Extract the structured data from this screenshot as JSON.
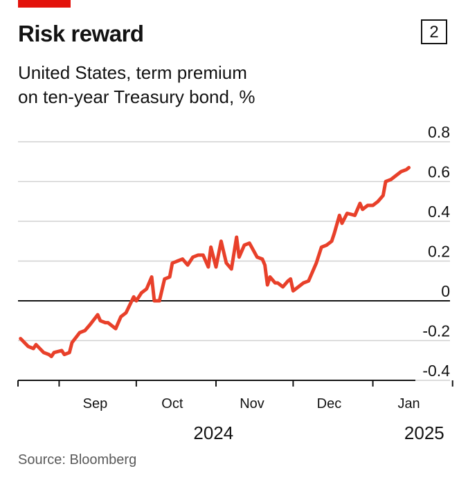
{
  "header": {
    "title": "Risk reward",
    "badge": "2",
    "subtitle_line1": "United States, term premium",
    "subtitle_line2": "on ten-year Treasury bond, %"
  },
  "source": "Source: Bloomberg",
  "colors": {
    "accent": "#e3120b",
    "line": "#e8402a",
    "grid": "#d0d0d0",
    "axis": "#121212"
  },
  "chart_data": {
    "type": "line",
    "title": "Risk reward",
    "subtitle": "United States, term premium on ten-year Treasury bond, %",
    "ylim": [
      -0.4,
      0.8
    ],
    "yticks": [
      -0.4,
      -0.2,
      0,
      0.2,
      0.4,
      0.6,
      0.8
    ],
    "ytick_labels": [
      "-0.4",
      "-0.2",
      "0",
      "0.2",
      "0.4",
      "0.6",
      "0.8"
    ],
    "xlim": [
      "2024-08-16",
      "2025-01-31"
    ],
    "month_labels": [
      {
        "label": "Sep",
        "date": "2024-09-15"
      },
      {
        "label": "Oct",
        "date": "2024-10-15"
      },
      {
        "label": "Nov",
        "date": "2024-11-15"
      },
      {
        "label": "Dec",
        "date": "2024-12-15"
      },
      {
        "label": "Jan",
        "date": "2025-01-15"
      }
    ],
    "month_boundaries": [
      "2024-09-01",
      "2024-10-01",
      "2024-11-01",
      "2024-12-01",
      "2025-01-01",
      "2025-02-01"
    ],
    "year_labels": [
      {
        "label": "2024",
        "date": "2024-10-31"
      },
      {
        "label": "2025",
        "date": "2025-01-21"
      }
    ],
    "series": [
      {
        "color": "#e8402a",
        "points": [
          [
            "2024-08-17",
            -0.19
          ],
          [
            "2024-08-20",
            -0.23
          ],
          [
            "2024-08-22",
            -0.24
          ],
          [
            "2024-08-23",
            -0.22
          ],
          [
            "2024-08-26",
            -0.26
          ],
          [
            "2024-08-28",
            -0.27
          ],
          [
            "2024-08-29",
            -0.28
          ],
          [
            "2024-08-30",
            -0.26
          ],
          [
            "2024-09-02",
            -0.25
          ],
          [
            "2024-09-03",
            -0.27
          ],
          [
            "2024-09-05",
            -0.26
          ],
          [
            "2024-09-06",
            -0.21
          ],
          [
            "2024-09-09",
            -0.16
          ],
          [
            "2024-09-11",
            -0.15
          ],
          [
            "2024-09-13",
            -0.12
          ],
          [
            "2024-09-16",
            -0.07
          ],
          [
            "2024-09-17",
            -0.1
          ],
          [
            "2024-09-19",
            -0.11
          ],
          [
            "2024-09-20",
            -0.11
          ],
          [
            "2024-09-23",
            -0.14
          ],
          [
            "2024-09-25",
            -0.08
          ],
          [
            "2024-09-27",
            -0.06
          ],
          [
            "2024-09-30",
            0.02
          ],
          [
            "2024-10-01",
            0.0
          ],
          [
            "2024-10-03",
            0.04
          ],
          [
            "2024-10-05",
            0.06
          ],
          [
            "2024-10-07",
            0.12
          ],
          [
            "2024-10-08",
            0.0
          ],
          [
            "2024-10-10",
            0.0
          ],
          [
            "2024-10-12",
            0.11
          ],
          [
            "2024-10-14",
            0.12
          ],
          [
            "2024-10-15",
            0.19
          ],
          [
            "2024-10-17",
            0.2
          ],
          [
            "2024-10-19",
            0.21
          ],
          [
            "2024-10-21",
            0.18
          ],
          [
            "2024-10-23",
            0.22
          ],
          [
            "2024-10-25",
            0.23
          ],
          [
            "2024-10-27",
            0.23
          ],
          [
            "2024-10-29",
            0.17
          ],
          [
            "2024-10-30",
            0.27
          ],
          [
            "2024-11-01",
            0.17
          ],
          [
            "2024-11-03",
            0.3
          ],
          [
            "2024-11-05",
            0.19
          ],
          [
            "2024-11-07",
            0.16
          ],
          [
            "2024-11-09",
            0.32
          ],
          [
            "2024-11-10",
            0.22
          ],
          [
            "2024-11-12",
            0.28
          ],
          [
            "2024-11-14",
            0.29
          ],
          [
            "2024-11-17",
            0.22
          ],
          [
            "2024-11-19",
            0.21
          ],
          [
            "2024-11-20",
            0.18
          ],
          [
            "2024-11-21",
            0.08
          ],
          [
            "2024-11-22",
            0.12
          ],
          [
            "2024-11-24",
            0.09
          ],
          [
            "2024-11-25",
            0.09
          ],
          [
            "2024-11-27",
            0.07
          ],
          [
            "2024-11-29",
            0.1
          ],
          [
            "2024-11-30",
            0.11
          ],
          [
            "2024-12-01",
            0.05
          ],
          [
            "2024-12-03",
            0.07
          ],
          [
            "2024-12-05",
            0.09
          ],
          [
            "2024-12-07",
            0.1
          ],
          [
            "2024-12-10",
            0.19
          ],
          [
            "2024-12-12",
            0.27
          ],
          [
            "2024-12-14",
            0.28
          ],
          [
            "2024-12-16",
            0.3
          ],
          [
            "2024-12-17",
            0.34
          ],
          [
            "2024-12-19",
            0.43
          ],
          [
            "2024-12-20",
            0.39
          ],
          [
            "2024-12-22",
            0.44
          ],
          [
            "2024-12-25",
            0.43
          ],
          [
            "2024-12-27",
            0.49
          ],
          [
            "2024-12-28",
            0.46
          ],
          [
            "2024-12-30",
            0.48
          ],
          [
            "2025-01-01",
            0.48
          ],
          [
            "2025-01-03",
            0.5
          ],
          [
            "2025-01-05",
            0.53
          ],
          [
            "2025-01-06",
            0.6
          ],
          [
            "2025-01-08",
            0.61
          ],
          [
            "2025-01-10",
            0.63
          ],
          [
            "2025-01-12",
            0.65
          ],
          [
            "2025-01-14",
            0.66
          ],
          [
            "2025-01-15",
            0.67
          ]
        ]
      }
    ],
    "grid": true,
    "legend": "none"
  }
}
